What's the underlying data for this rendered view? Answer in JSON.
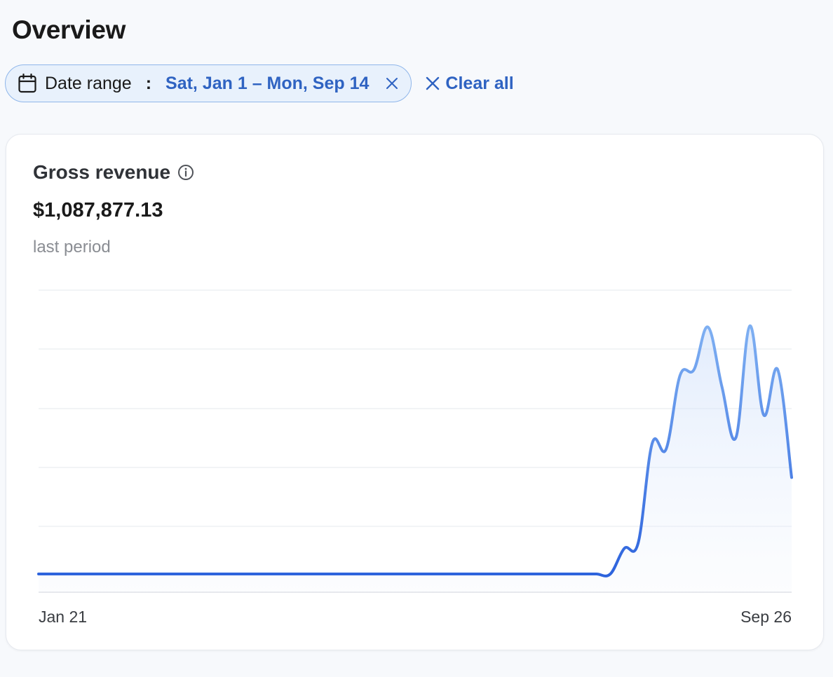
{
  "page": {
    "title": "Overview"
  },
  "filters": {
    "date_range": {
      "label": "Date range",
      "separator": ":",
      "value": "Sat, Jan 1 – Mon, Sep 14",
      "icon": "calendar-icon"
    },
    "clear_all_label": "Clear all"
  },
  "metric": {
    "title": "Gross revenue",
    "value": "$1,087,877.13",
    "comparison_label": "last period"
  },
  "colors": {
    "accent": "#2f63c2",
    "line_start": "#2d63dd",
    "line_end": "#7fb0f2",
    "chip_bg": "#e8f1fc",
    "chip_border": "#8fb6ea"
  },
  "chart_data": {
    "type": "area",
    "title": "",
    "xlabel": "",
    "ylabel": "",
    "x_tick_labels": [
      "Jan 21",
      "Sep 26"
    ],
    "x_range": [
      "Jan 21",
      "Sep 26"
    ],
    "grid": true,
    "y_axis_labels_visible": false,
    "ylim": [
      0,
      5
    ],
    "series": [
      {
        "values": [
          0,
          0,
          0,
          0,
          0,
          0,
          0,
          0,
          0,
          0,
          0,
          0,
          0,
          0,
          0,
          0,
          0,
          0,
          0,
          0,
          0,
          0,
          0,
          0,
          0,
          0,
          0,
          0,
          0,
          0,
          0,
          0,
          0,
          0,
          0,
          0,
          0,
          0,
          0,
          0,
          0,
          0,
          0.45,
          0.55,
          2.3,
          2.2,
          3.5,
          3.6,
          4.35,
          3.3,
          2.4,
          4.37,
          2.8,
          3.6,
          1.7
        ]
      }
    ]
  }
}
